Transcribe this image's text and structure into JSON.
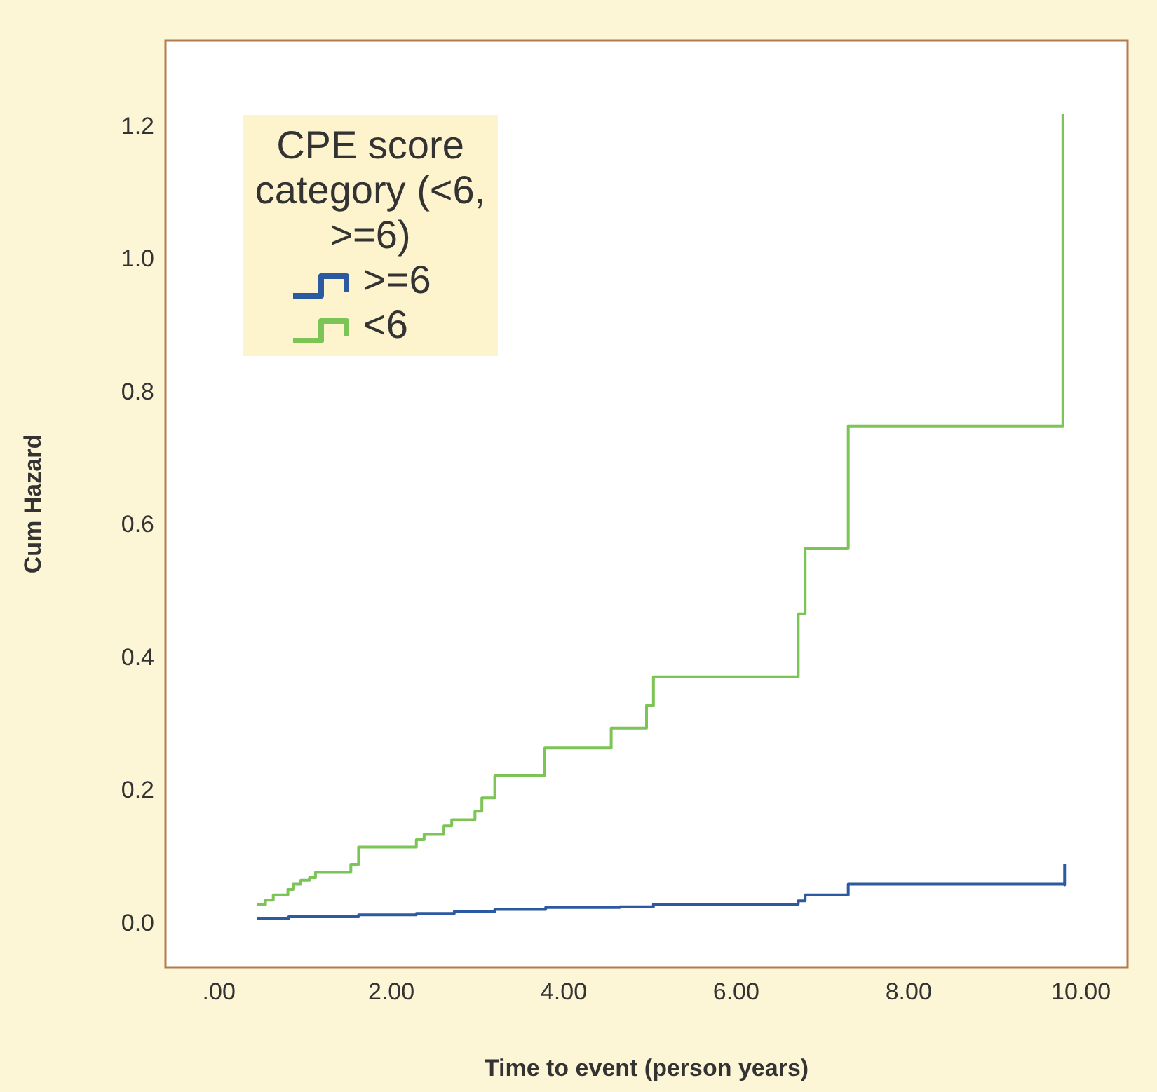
{
  "chart_data": {
    "type": "step",
    "xlabel": "Time to event (person years)",
    "ylabel": "Cum Hazard",
    "legend_title": "CPE score category (<6, >=6)",
    "legend": "top left",
    "grid": false,
    "marker": "none",
    "line_style": "solid",
    "xlim": [
      -0.62,
      10.54
    ],
    "ylim": [
      -0.065,
      1.33
    ],
    "xticks": [
      {
        "value": 0,
        "label": ".00"
      },
      {
        "value": 2,
        "label": "2.00"
      },
      {
        "value": 4,
        "label": "4.00"
      },
      {
        "value": 6,
        "label": "6.00"
      },
      {
        "value": 8,
        "label": "8.00"
      },
      {
        "value": 10,
        "label": "10.00"
      }
    ],
    "yticks": [
      {
        "value": 0,
        "label": "0.0"
      },
      {
        "value": 0.2,
        "label": "0.2"
      },
      {
        "value": 0.4,
        "label": "0.4"
      },
      {
        "value": 0.6,
        "label": "0.6"
      },
      {
        "value": 0.8,
        "label": "0.8"
      },
      {
        "value": 1,
        "label": "1.0"
      },
      {
        "value": 1.2,
        "label": "1.2"
      }
    ],
    "series": [
      {
        "name": ">=6",
        "color": "#2c5aa0",
        "x": [
          0.44,
          0.81,
          1.62,
          2.29,
          2.73,
          3.2,
          3.79,
          4.65,
          5.04,
          6.72,
          6.8,
          7.3,
          9.81,
          9.81
        ],
        "values": [
          0.008,
          0.011,
          0.014,
          0.016,
          0.019,
          0.022,
          0.025,
          0.026,
          0.03,
          0.035,
          0.044,
          0.06,
          0.059,
          0.091
        ]
      },
      {
        "name": "<6",
        "color": "#7cc456",
        "x": [
          0.44,
          0.54,
          0.63,
          0.8,
          0.86,
          0.95,
          1.05,
          1.12,
          1.53,
          1.62,
          2.29,
          2.38,
          2.61,
          2.7,
          2.97,
          3.05,
          3.2,
          3.78,
          4.55,
          4.96,
          5.04,
          6.72,
          6.8,
          7.3,
          9.79,
          9.79
        ],
        "values": [
          0.029,
          0.036,
          0.044,
          0.052,
          0.06,
          0.066,
          0.07,
          0.078,
          0.09,
          0.116,
          0.127,
          0.135,
          0.148,
          0.157,
          0.17,
          0.19,
          0.223,
          0.265,
          0.295,
          0.329,
          0.372,
          0.467,
          0.566,
          0.75,
          0.75,
          1.22
        ]
      }
    ]
  }
}
